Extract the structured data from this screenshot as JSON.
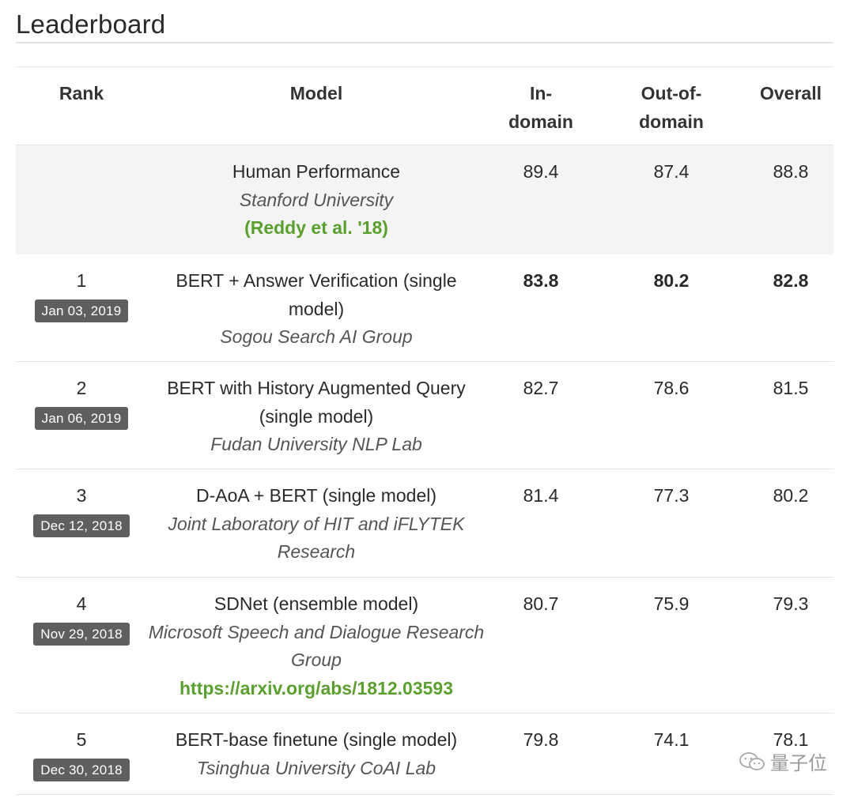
{
  "page": {
    "title": "Leaderboard"
  },
  "columns": {
    "rank": "Rank",
    "model": "Model",
    "in_domain": "In-\ndomain",
    "out_of_domain": "Out-of-\ndomain",
    "overall": "Overall"
  },
  "human": {
    "name": "Human Performance",
    "org": "Stanford University",
    "link": "(Reddy et al. '18)",
    "in_domain": "89.4",
    "out_of_domain": "87.4",
    "overall": "88.8"
  },
  "rows": [
    {
      "rank": "1",
      "date": "Jan 03, 2019",
      "name": "BERT + Answer Verification (single model)",
      "org": "Sogou Search AI Group",
      "link": "",
      "in_domain": "83.8",
      "out_of_domain": "80.2",
      "overall": "82.8",
      "best": true
    },
    {
      "rank": "2",
      "date": "Jan 06, 2019",
      "name": "BERT with History Augmented Query (single model)",
      "org": "Fudan University NLP Lab",
      "link": "",
      "in_domain": "82.7",
      "out_of_domain": "78.6",
      "overall": "81.5",
      "best": false
    },
    {
      "rank": "3",
      "date": "Dec 12, 2018",
      "name": "D-AoA + BERT (single model)",
      "org": "Joint Laboratory of HIT and iFLYTEK Research",
      "link": "",
      "in_domain": "81.4",
      "out_of_domain": "77.3",
      "overall": "80.2",
      "best": false
    },
    {
      "rank": "4",
      "date": "Nov 29, 2018",
      "name": "SDNet (ensemble model)",
      "org": "Microsoft Speech and Dialogue Research Group",
      "link": "https://arxiv.org/abs/1812.03593",
      "in_domain": "80.7",
      "out_of_domain": "75.9",
      "overall": "79.3",
      "best": false
    },
    {
      "rank": "5",
      "date": "Dec 30, 2018",
      "name": "BERT-base finetune (single model)",
      "org": "Tsinghua University CoAI Lab",
      "link": "",
      "in_domain": "79.8",
      "out_of_domain": "74.1",
      "overall": "78.1",
      "best": false
    }
  ],
  "watermark": {
    "icon": "wechat-icon",
    "text": "量子位"
  },
  "colors": {
    "link": "#5aa02c",
    "badge": "#5f5f5f",
    "human_row_bg": "#f4f4f4"
  }
}
